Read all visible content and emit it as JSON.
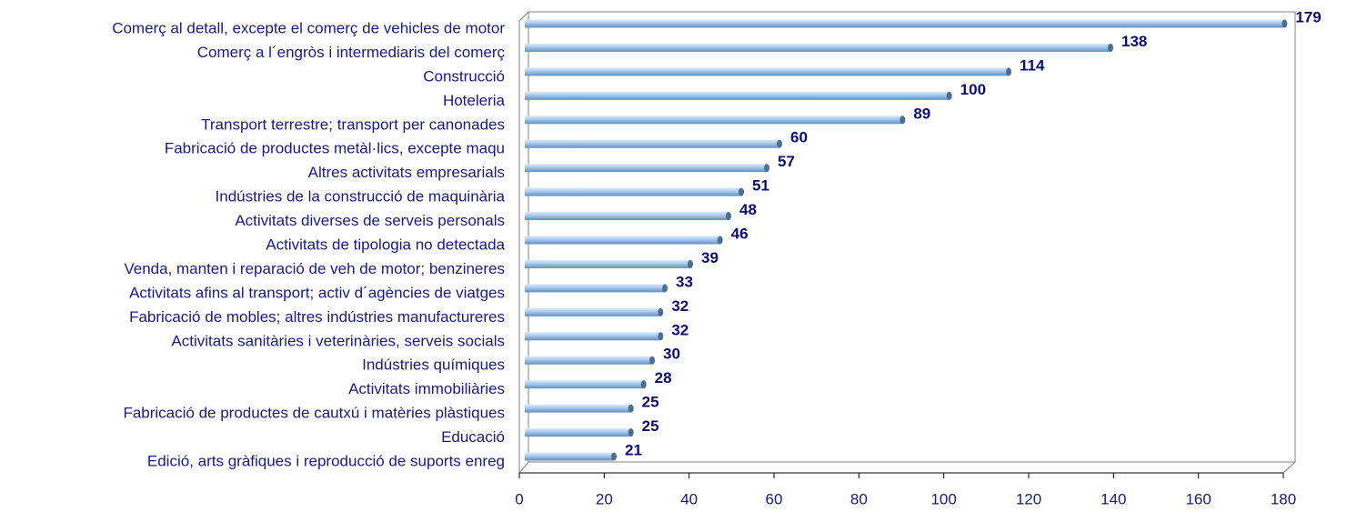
{
  "chart_data": {
    "type": "bar",
    "orientation": "horizontal",
    "categories": [
      "Comerç al detall, excepte el comerç de vehicles de motor",
      "Comerç a l´engròs i intermediaris del comerç",
      "Construcció",
      "Hoteleria",
      "Transport terrestre; transport per canonades",
      "Fabricació de productes metàl·lics, excepte maqu",
      "Altres activitats empresarials",
      "Indústries de la construcció de maquinària",
      "Activitats diverses de serveis personals",
      "Activitats de tipologia no detectada",
      "Venda, manten i reparació de veh de motor; benzineres",
      "Activitats afins al transport; activ d´agències de viatges",
      "Fabricació de mobles; altres indústries manufactureres",
      "Activitats sanitàries i veterinàries, serveis socials",
      "Indústries químiques",
      "Activitats immobiliàries",
      "Fabricació de productes de cautxú i matèries plàstiques",
      "Educació",
      "Edició, arts gràfiques i reproducció de suports enreg"
    ],
    "values": [
      179,
      138,
      114,
      100,
      89,
      60,
      57,
      51,
      48,
      46,
      39,
      33,
      32,
      32,
      30,
      28,
      25,
      25,
      21
    ],
    "color": "#9ec3e6",
    "xlim": [
      0,
      180
    ],
    "xticks": [
      0,
      20,
      40,
      60,
      80,
      100,
      120,
      140,
      160,
      180
    ],
    "grid": false
  }
}
